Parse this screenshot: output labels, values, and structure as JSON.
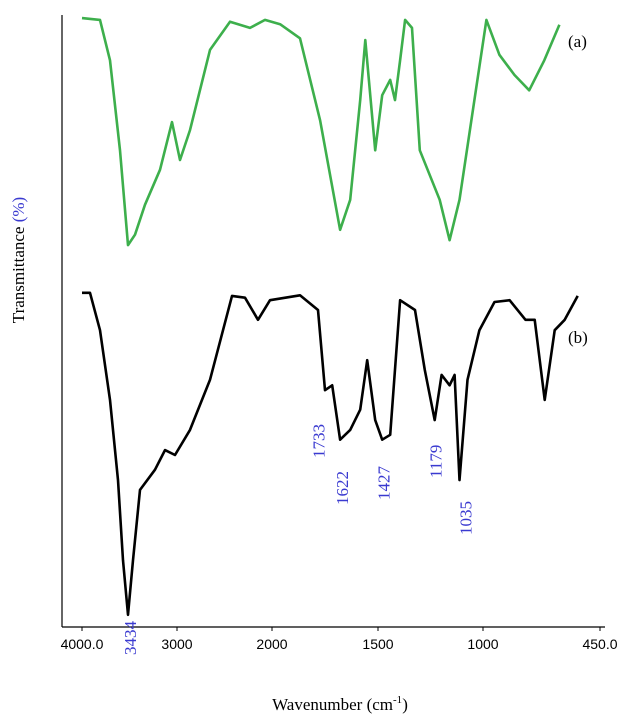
{
  "chart_data": {
    "type": "line",
    "x_label": [
      "Wavenumber (cm",
      "-1",
      ")"
    ],
    "y_label": [
      "Transmittance",
      "(%)"
    ],
    "xlim": [
      4000,
      450
    ],
    "ylim": [
      0,
      100
    ],
    "xticks": [
      {
        "value": 4000,
        "label": "4000.0"
      },
      3000,
      2000,
      1500,
      1000,
      {
        "value": 450,
        "label": "450.0"
      }
    ],
    "peak_labels": [
      3434,
      1733,
      1622,
      1427,
      1179,
      1035
    ],
    "series": [
      {
        "name": "(a)",
        "color": "#3daf4c",
        "x": [
          4000,
          3810,
          3705,
          3600,
          3516,
          3442,
          3337,
          3179,
          3053,
          2968,
          2863,
          2653,
          2442,
          2232,
          2074,
          1962,
          1868,
          1773,
          1679,
          1631,
          1584,
          1560,
          1513,
          1480,
          1442,
          1419,
          1395,
          1371,
          1338,
          1301,
          1206,
          1159,
          1112,
          1041,
          984,
          923,
          852,
          830,
          783,
          712,
          641
        ],
        "values": [
          99.5,
          99.2,
          92.6,
          77.9,
          62.4,
          64.1,
          69.0,
          74.7,
          82.5,
          76.3,
          81.2,
          94.3,
          98.9,
          97.9,
          99.2,
          98.5,
          96.2,
          82.8,
          64.9,
          69.8,
          86.1,
          95.9,
          77.9,
          86.9,
          89.4,
          86.1,
          92.6,
          99.2,
          97.9,
          77.9,
          69.8,
          63.2,
          69.8,
          86.1,
          99.2,
          93.5,
          90.2,
          89.4,
          87.7,
          92.6,
          98.4
        ]
      },
      {
        "name": "(b)",
        "color": "#000000",
        "x": [
          4000,
          3916,
          3811,
          3705,
          3621,
          3568,
          3516,
          3463,
          3389,
          3232,
          3126,
          3021,
          2863,
          2653,
          2421,
          2284,
          2147,
          2021,
          1868,
          1783,
          1750,
          1716,
          1679,
          1631,
          1584,
          1551,
          1513,
          1480,
          1442,
          1395,
          1324,
          1277,
          1230,
          1197,
          1159,
          1135,
          1112,
          1074,
          1017,
          946,
          875,
          800,
          757,
          710,
          663,
          616,
          555
        ],
        "values": [
          54.6,
          54.6,
          48.5,
          37.1,
          24.0,
          10.9,
          2.0,
          10.9,
          22.4,
          25.7,
          28.9,
          28.1,
          32.2,
          40.4,
          54.1,
          53.8,
          50.2,
          53.4,
          54.2,
          51.8,
          38.7,
          39.5,
          30.6,
          32.2,
          35.5,
          43.6,
          33.8,
          30.6,
          31.4,
          53.4,
          51.8,
          42.0,
          33.8,
          41.2,
          39.5,
          41.2,
          24.0,
          40.4,
          48.5,
          53.1,
          53.4,
          50.2,
          50.2,
          37.1,
          48.5,
          50.2,
          54.1
        ]
      }
    ]
  }
}
